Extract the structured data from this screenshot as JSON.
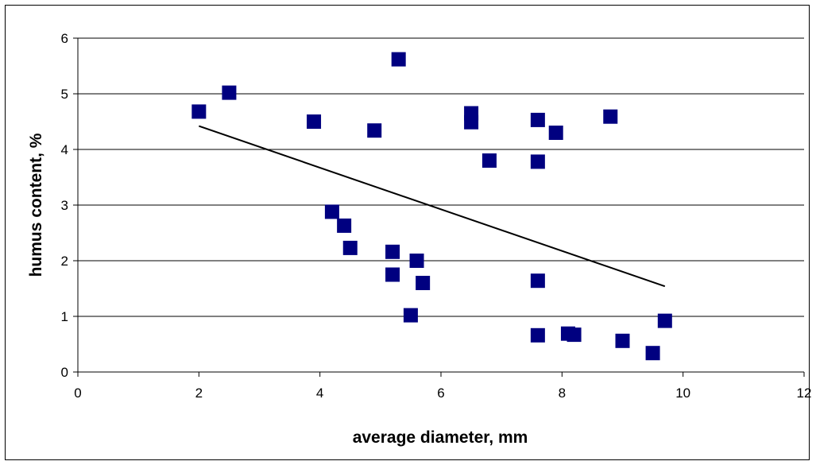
{
  "chart_data": {
    "type": "scatter",
    "title": "",
    "xlabel": "average diameter, mm",
    "ylabel": "humus content, %",
    "xlim": [
      0,
      12
    ],
    "ylim": [
      0,
      6
    ],
    "x_ticks": [
      "0",
      "2",
      "4",
      "6",
      "8",
      "10",
      "12"
    ],
    "y_ticks": [
      "0",
      "1",
      "2",
      "3",
      "4",
      "5",
      "6"
    ],
    "grid": "horizontal",
    "legend": "none",
    "marker_color": "#000080",
    "trendline_color": "#000000",
    "series": [
      {
        "marker": "square",
        "points": [
          {
            "x": 2.0,
            "y": 4.68
          },
          {
            "x": 2.5,
            "y": 5.02
          },
          {
            "x": 3.9,
            "y": 4.5
          },
          {
            "x": 4.2,
            "y": 2.88
          },
          {
            "x": 4.4,
            "y": 2.63
          },
          {
            "x": 4.5,
            "y": 2.23
          },
          {
            "x": 4.9,
            "y": 4.34
          },
          {
            "x": 5.2,
            "y": 2.16
          },
          {
            "x": 5.2,
            "y": 1.75
          },
          {
            "x": 5.3,
            "y": 5.62
          },
          {
            "x": 5.5,
            "y": 1.02
          },
          {
            "x": 5.6,
            "y": 2.0
          },
          {
            "x": 5.7,
            "y": 1.6
          },
          {
            "x": 6.5,
            "y": 4.65
          },
          {
            "x": 6.5,
            "y": 4.49
          },
          {
            "x": 6.8,
            "y": 3.8
          },
          {
            "x": 7.6,
            "y": 4.53
          },
          {
            "x": 7.6,
            "y": 3.78
          },
          {
            "x": 7.6,
            "y": 1.64
          },
          {
            "x": 7.6,
            "y": 0.66
          },
          {
            "x": 7.9,
            "y": 4.3
          },
          {
            "x": 8.1,
            "y": 0.69
          },
          {
            "x": 8.2,
            "y": 0.67
          },
          {
            "x": 8.8,
            "y": 4.59
          },
          {
            "x": 9.0,
            "y": 0.56
          },
          {
            "x": 9.5,
            "y": 0.34
          },
          {
            "x": 9.7,
            "y": 0.92
          }
        ]
      }
    ],
    "trendline": {
      "type": "linear",
      "x": [
        2.0,
        9.7
      ],
      "y": [
        4.42,
        1.54
      ]
    }
  }
}
